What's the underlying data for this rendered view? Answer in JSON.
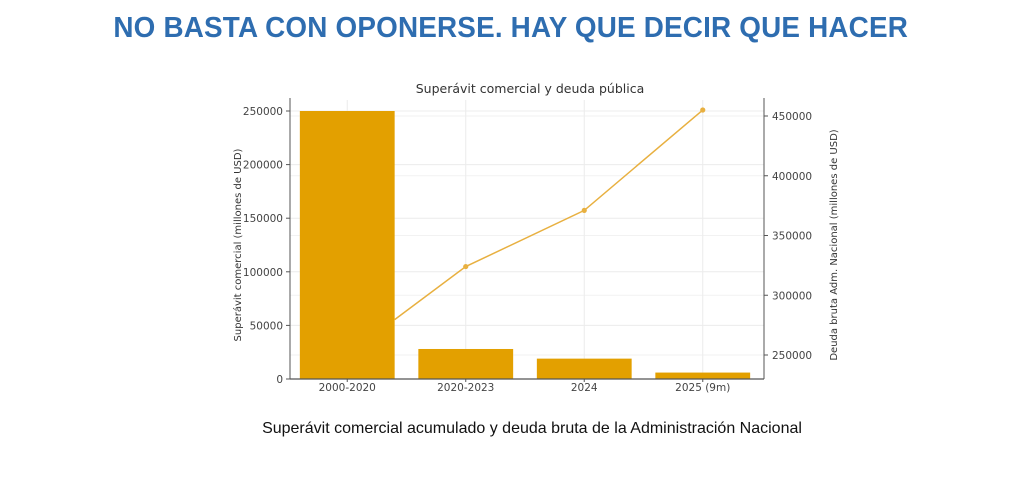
{
  "headline": "NO BASTA CON OPONERSE. HAY QUE DECIR QUE HACER",
  "caption": "Superávit comercial acumulado y deuda bruta de la Administración Nacional",
  "chart_data": {
    "type": "bar+line",
    "title": "Superávit comercial y deuda pública",
    "categories": [
      "2000-2020",
      "2020-2023",
      "2024",
      "2025 (9m)"
    ],
    "series": [
      {
        "name": "Superávit comercial",
        "type": "bar",
        "axis": "left",
        "color": "#e3a000",
        "values": [
          250000,
          28000,
          19000,
          6000
        ]
      },
      {
        "name": "Deuda bruta Adm. Nacional",
        "type": "line",
        "axis": "right",
        "color": "#e8b040",
        "values": [
          250000,
          324000,
          371000,
          455000
        ]
      }
    ],
    "ylabel": "Superávit comercial (millones de USD)",
    "y2label": "Deuda bruta Adm. Nacional (millones de USD)",
    "ylim": [
      0,
      262000
    ],
    "y2lim": [
      228000,
      462000
    ],
    "yticks": [
      "0",
      "50000",
      "100000",
      "150000",
      "200000",
      "250000"
    ],
    "y2ticks": [
      "250000",
      "300000",
      "350000",
      "400000",
      "450000"
    ],
    "grid": true
  }
}
